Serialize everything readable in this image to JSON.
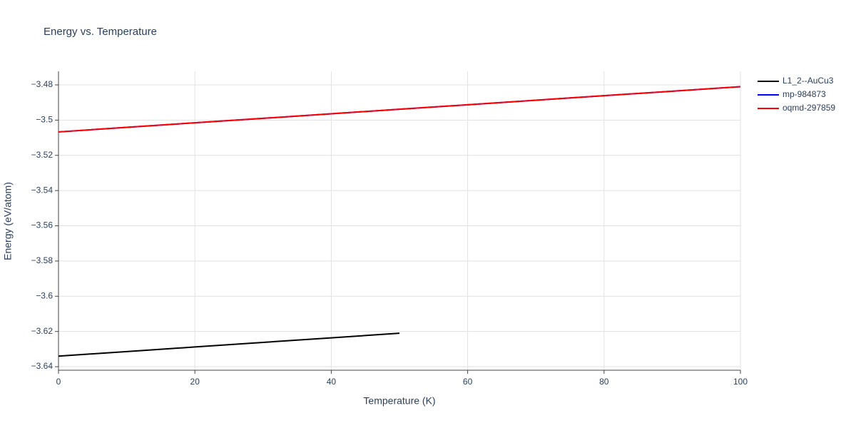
{
  "chart_data": {
    "type": "line",
    "title": "Energy vs. Temperature",
    "x_label": "Temperature (K)",
    "y_label": "Energy (eV/atom)",
    "xlim": [
      0,
      100
    ],
    "xticks": [
      0,
      20,
      40,
      60,
      80,
      100
    ],
    "ylim": [
      -3.642,
      -3.4723
    ],
    "yticks": [
      {
        "value": -3.64,
        "label": "−3.64"
      },
      {
        "value": -3.62,
        "label": "−3.62"
      },
      {
        "value": -3.6,
        "label": "−3.6"
      },
      {
        "value": -3.58,
        "label": "−3.58"
      },
      {
        "value": -3.56,
        "label": "−3.56"
      },
      {
        "value": -3.54,
        "label": "−3.54"
      },
      {
        "value": -3.52,
        "label": "−3.52"
      },
      {
        "value": -3.5,
        "label": "−3.5"
      },
      {
        "value": -3.48,
        "label": "−3.48"
      }
    ],
    "grid": true,
    "series": [
      {
        "name": "L1_2--AuCu3",
        "color": "#000000",
        "x": [
          0,
          10,
          20,
          30,
          40,
          50
        ],
        "values": [
          -3.634,
          -3.6314,
          -3.6288,
          -3.6262,
          -3.6236,
          -3.621
        ]
      },
      {
        "name": "mp-984873",
        "color": "#0000ff",
        "x": [
          0,
          10,
          20,
          30,
          40,
          50,
          60,
          70,
          80,
          90,
          100
        ],
        "values": [
          -3.5067,
          -3.5041,
          -3.5015,
          -3.499,
          -3.4964,
          -3.4938,
          -3.4913,
          -3.4887,
          -3.4861,
          -3.4836,
          -3.481
        ]
      },
      {
        "name": "oqmd-297859",
        "color": "#ff0000",
        "x": [
          0,
          10,
          20,
          30,
          40,
          50,
          60,
          70,
          80,
          90,
          100
        ],
        "values": [
          -3.5067,
          -3.5041,
          -3.5015,
          -3.499,
          -3.4964,
          -3.4938,
          -3.4913,
          -3.4887,
          -3.4861,
          -3.4836,
          -3.481
        ]
      }
    ]
  }
}
